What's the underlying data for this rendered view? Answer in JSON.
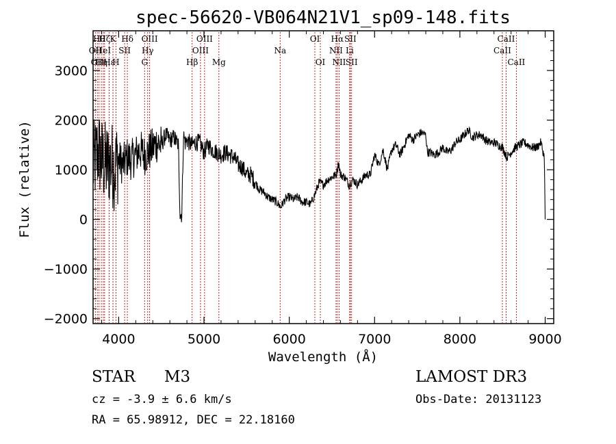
{
  "chart_data": {
    "type": "line",
    "title": "spec-56620-VB064N21V1_sp09-148.fits",
    "xlabel": "Wavelength (Å)",
    "ylabel": "Flux (relative)",
    "xlim": [
      3700,
      9100
    ],
    "ylim": [
      -2100,
      3800
    ],
    "x_ticks": [
      4000,
      5000,
      6000,
      7000,
      8000,
      9000
    ],
    "y_ticks": [
      -2000,
      -1000,
      0,
      1000,
      2000,
      3000
    ],
    "x_tick_labels": [
      "4000",
      "5000",
      "6000",
      "7000",
      "8000",
      "9000"
    ],
    "y_tick_labels": [
      "−2000",
      "−1000",
      "0",
      "1000",
      "2000",
      "3000"
    ],
    "line_color": "#000000",
    "marker_color": "#cc0000",
    "series": [
      {
        "name": "flux",
        "x": [
          3700,
          3760,
          3800,
          3850,
          3900,
          3950,
          4000,
          4050,
          4100,
          4150,
          4200,
          4250,
          4300,
          4350,
          4400,
          4450,
          4500,
          4550,
          4600,
          4650,
          4700,
          4720,
          4740,
          4760,
          4780,
          4800,
          4850,
          4900,
          4950,
          5000,
          5050,
          5100,
          5150,
          5200,
          5250,
          5300,
          5350,
          5400,
          5450,
          5500,
          5550,
          5600,
          5650,
          5700,
          5750,
          5800,
          5850,
          5900,
          5950,
          6000,
          6050,
          6100,
          6150,
          6200,
          6250,
          6300,
          6350,
          6400,
          6450,
          6500,
          6550,
          6580,
          6600,
          6650,
          6700,
          6750,
          6800,
          6850,
          6900,
          6950,
          7000,
          7050,
          7100,
          7150,
          7200,
          7250,
          7300,
          7350,
          7400,
          7450,
          7500,
          7550,
          7600,
          7620,
          7650,
          7700,
          7750,
          7800,
          7850,
          7900,
          7950,
          8000,
          8050,
          8100,
          8150,
          8200,
          8250,
          8300,
          8350,
          8400,
          8450,
          8500,
          8550,
          8600,
          8650,
          8700,
          8750,
          8800,
          8850,
          8900,
          8950,
          8990,
          9000
        ],
        "y": [
          1050,
          1400,
          1200,
          1100,
          1150,
          1050,
          1200,
          1100,
          1250,
          1200,
          1300,
          1400,
          1300,
          1350,
          1450,
          1550,
          1500,
          1700,
          1600,
          1650,
          1500,
          100,
          100,
          1700,
          1550,
          1600,
          1500,
          1550,
          1550,
          1350,
          1500,
          1400,
          1350,
          1300,
          1350,
          1300,
          1250,
          1100,
          1050,
          900,
          900,
          750,
          600,
          550,
          450,
          400,
          350,
          250,
          400,
          450,
          400,
          450,
          350,
          350,
          300,
          500,
          750,
          700,
          800,
          850,
          900,
          1150,
          900,
          850,
          700,
          800,
          700,
          800,
          900,
          900,
          1300,
          1100,
          1400,
          1000,
          1400,
          1500,
          1300,
          1500,
          1700,
          1600,
          1700,
          1750,
          1700,
          1350,
          1350,
          1300,
          1350,
          1450,
          1350,
          1400,
          1550,
          1600,
          1700,
          1800,
          1650,
          1700,
          1700,
          1600,
          1550,
          1550,
          1500,
          1450,
          1250,
          1350,
          1450,
          1500,
          1550,
          1500,
          1450,
          1450,
          1550,
          1250,
          0
        ]
      }
    ],
    "spectral_lines": [
      {
        "wavelength": 3727,
        "label": "OII",
        "row": 2
      },
      {
        "wavelength": 3750,
        "label": "OII",
        "row": 3
      },
      {
        "wavelength": 3770,
        "label": "Hθ",
        "row": 1
      },
      {
        "wavelength": 3797,
        "label": "Hη",
        "row": 3
      },
      {
        "wavelength": 3820,
        "label": "HeI",
        "row": 2
      },
      {
        "wavelength": 3835,
        "label": "Hζ",
        "row": 1
      },
      {
        "wavelength": 3889,
        "label": "Hε",
        "row": 3
      },
      {
        "wavelength": 3933,
        "label": "K",
        "row": 1
      },
      {
        "wavelength": 3968,
        "label": "H",
        "row": 3
      },
      {
        "wavelength": 4070,
        "label": "SII",
        "row": 2
      },
      {
        "wavelength": 4102,
        "label": "Hδ",
        "row": 1
      },
      {
        "wavelength": 4304,
        "label": "G",
        "row": 3
      },
      {
        "wavelength": 4340,
        "label": "Hγ",
        "row": 2
      },
      {
        "wavelength": 4363,
        "label": "OIII",
        "row": 1
      },
      {
        "wavelength": 4861,
        "label": "Hβ",
        "row": 3
      },
      {
        "wavelength": 4959,
        "label": "OIII",
        "row": 2
      },
      {
        "wavelength": 5007,
        "label": "OIII",
        "row": 1
      },
      {
        "wavelength": 5175,
        "label": "Mg",
        "row": 3
      },
      {
        "wavelength": 5893,
        "label": "Na",
        "row": 2
      },
      {
        "wavelength": 6300,
        "label": "OI",
        "row": 1
      },
      {
        "wavelength": 6364,
        "label": "OI",
        "row": 3
      },
      {
        "wavelength": 6548,
        "label": "NII",
        "row": 2
      },
      {
        "wavelength": 6563,
        "label": "Hα",
        "row": 1
      },
      {
        "wavelength": 6584,
        "label": "NII",
        "row": 3
      },
      {
        "wavelength": 6708,
        "label": "Li",
        "row": 2
      },
      {
        "wavelength": 6716,
        "label": "SII",
        "row": 1
      },
      {
        "wavelength": 6731,
        "label": "SII",
        "row": 3
      },
      {
        "wavelength": 8498,
        "label": "CaII",
        "row": 2
      },
      {
        "wavelength": 8542,
        "label": "CaII",
        "row": 1
      },
      {
        "wavelength": 8662,
        "label": "CaII",
        "row": 3
      }
    ]
  },
  "info": {
    "object_type": "STAR",
    "subclass": "M3",
    "survey": "LAMOST DR3",
    "redshift": "cz = -3.9 ± 6.6 km/s",
    "coordinates": "RA =  65.98912, DEC =  22.18160",
    "obs_date": "Obs-Date: 20131123"
  }
}
